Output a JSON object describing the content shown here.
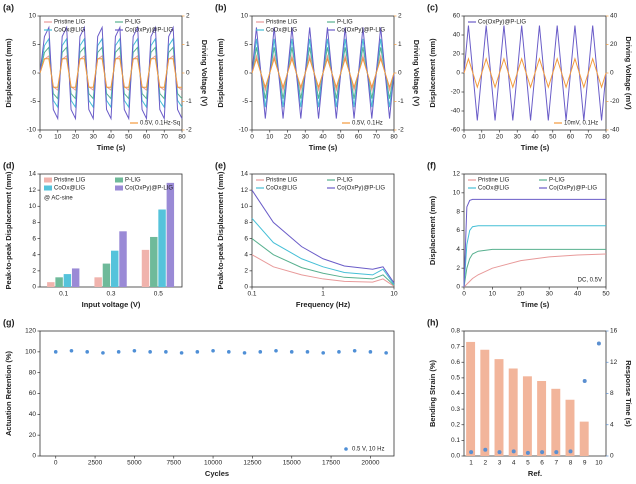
{
  "chart_data": [
    {
      "type": "line",
      "label": "(a)",
      "xlabel": "Time (s)",
      "ylabel": "Displacement (mm)",
      "y2label": "Driving Voltage (V)",
      "xlim": [
        0,
        80
      ],
      "xticks": [
        0,
        10,
        20,
        30,
        40,
        50,
        60,
        70,
        80
      ],
      "ylim": [
        -10,
        10
      ],
      "yticks": [
        -10,
        -5,
        0,
        5,
        10
      ],
      "y2lim": [
        -2,
        2
      ],
      "y2ticks": [
        -2,
        -1,
        0,
        1,
        2
      ],
      "x": [
        0,
        2.5,
        5,
        7.5,
        10,
        12.5,
        15,
        17.5,
        20,
        22.5,
        25,
        27.5,
        30,
        32.5,
        35,
        37.5,
        40,
        42.5,
        45,
        47.5,
        50,
        52.5,
        55,
        57.5,
        60,
        62.5,
        65,
        67.5,
        70,
        72.5,
        75,
        77.5,
        80
      ],
      "series": [
        {
          "name": "Pristine LIG",
          "color": "#e89a9a",
          "values": [
            0,
            2.4,
            3,
            -2.4,
            -3,
            2.4,
            3,
            -2.4,
            -3,
            2.4,
            3,
            -2.4,
            -3,
            2.4,
            3,
            -2.4,
            -3,
            2.4,
            3,
            -2.4,
            -3,
            2.4,
            3,
            -2.4,
            -3,
            2.4,
            3,
            -2.4,
            -3,
            2.4,
            3,
            -2.4,
            -3
          ]
        },
        {
          "name": "P-LIG",
          "color": "#58b08f",
          "values": [
            0,
            3.6,
            4.5,
            -3.6,
            -4.5,
            3.6,
            4.5,
            -3.6,
            -4.5,
            3.6,
            4.5,
            -3.6,
            -4.5,
            3.6,
            4.5,
            -3.6,
            -4.5,
            3.6,
            4.5,
            -3.6,
            -4.5,
            3.6,
            4.5,
            -3.6,
            -4.5,
            3.6,
            4.5,
            -3.6,
            -4.5,
            3.6,
            4.5,
            -3.6,
            -4.5
          ]
        },
        {
          "name": "CoOx@LIG",
          "color": "#45bfd6",
          "values": [
            0,
            4.8,
            6,
            -4.8,
            -6,
            4.8,
            6,
            -4.8,
            -6,
            4.8,
            6,
            -4.8,
            -6,
            4.8,
            6,
            -4.8,
            -6,
            4.8,
            6,
            -4.8,
            -6,
            4.8,
            6,
            -4.8,
            -6,
            4.8,
            6,
            -4.8,
            -6,
            4.8,
            6,
            -4.8,
            -6
          ]
        },
        {
          "name": "Co(OxPy)@P-LIG",
          "color": "#6a5cc8",
          "values": [
            0,
            6.4,
            8,
            -6.4,
            -8,
            6.4,
            8,
            -6.4,
            -8,
            6.4,
            8,
            -6.4,
            -8,
            6.4,
            8,
            -6.4,
            -8,
            6.4,
            8,
            -6.4,
            -8,
            6.4,
            8,
            -6.4,
            -8,
            6.4,
            8,
            -6.4,
            -8,
            6.4,
            8,
            -6.4,
            -8
          ]
        },
        {
          "name": "0.5V, 0.1Hz-Sq",
          "color": "#f29a3c",
          "axis": "y2",
          "values": [
            0,
            0.5,
            0.5,
            -0.5,
            -0.5,
            0.5,
            0.5,
            -0.5,
            -0.5,
            0.5,
            0.5,
            -0.5,
            -0.5,
            0.5,
            0.5,
            -0.5,
            -0.5,
            0.5,
            0.5,
            -0.5,
            -0.5,
            0.5,
            0.5,
            -0.5,
            -0.5,
            0.5,
            0.5,
            -0.5,
            -0.5,
            0.5,
            0.5,
            -0.5,
            -0.5
          ]
        }
      ]
    },
    {
      "type": "line",
      "label": "(b)",
      "xlabel": "Time (s)",
      "ylabel": "Displacement (mm)",
      "y2label": "Driving Voltage (V)",
      "xlim": [
        0,
        80
      ],
      "xticks": [
        0,
        10,
        20,
        30,
        40,
        50,
        60,
        70,
        80
      ],
      "ylim": [
        -10,
        10
      ],
      "yticks": [
        -10,
        -5,
        0,
        5,
        10
      ],
      "y2lim": [
        -2,
        2
      ],
      "y2ticks": [
        -2,
        -1,
        0,
        1,
        2
      ],
      "x": [
        0,
        2.5,
        5,
        7.5,
        10,
        12.5,
        15,
        17.5,
        20,
        22.5,
        25,
        27.5,
        30,
        32.5,
        35,
        37.5,
        40,
        42.5,
        45,
        47.5,
        50,
        52.5,
        55,
        57.5,
        60,
        62.5,
        65,
        67.5,
        70,
        72.5,
        75,
        77.5,
        80
      ],
      "series": [
        {
          "name": "Pristine LIG",
          "color": "#e89a9a",
          "values": [
            0,
            3,
            0,
            -3,
            0,
            3,
            0,
            -3,
            0,
            3,
            0,
            -3,
            0,
            3,
            0,
            -3,
            0,
            3,
            0,
            -3,
            0,
            3,
            0,
            -3,
            0,
            3,
            0,
            -3,
            0,
            3,
            0,
            -3,
            0
          ]
        },
        {
          "name": "P-LIG",
          "color": "#58b08f",
          "values": [
            0,
            4.5,
            0,
            -4.5,
            0,
            4.5,
            0,
            -4.5,
            0,
            4.5,
            0,
            -4.5,
            0,
            4.5,
            0,
            -4.5,
            0,
            4.5,
            0,
            -4.5,
            0,
            4.5,
            0,
            -4.5,
            0,
            4.5,
            0,
            -4.5,
            0,
            4.5,
            0,
            -4.5,
            0
          ]
        },
        {
          "name": "CoOx@LIG",
          "color": "#45bfd6",
          "values": [
            0,
            6,
            0,
            -6,
            0,
            6,
            0,
            -6,
            0,
            6,
            0,
            -6,
            0,
            6,
            0,
            -6,
            0,
            6,
            0,
            -6,
            0,
            6,
            0,
            -6,
            0,
            6,
            0,
            -6,
            0,
            6,
            0,
            -6,
            0
          ]
        },
        {
          "name": "Co(OxPy)@P-LIG",
          "color": "#6a5cc8",
          "values": [
            0,
            8,
            0,
            -8,
            0,
            8,
            0,
            -8,
            0,
            8,
            0,
            -8,
            0,
            8,
            0,
            -8,
            0,
            8,
            0,
            -8,
            0,
            8,
            0,
            -8,
            0,
            8,
            0,
            -8,
            0,
            8,
            0,
            -8,
            0
          ]
        },
        {
          "name": "0.5V, 0.1Hz",
          "color": "#f29a3c",
          "axis": "y2",
          "values": [
            0,
            0.5,
            0,
            -0.5,
            0,
            0.5,
            0,
            -0.5,
            0,
            0.5,
            0,
            -0.5,
            0,
            0.5,
            0,
            -0.5,
            0,
            0.5,
            0,
            -0.5,
            0,
            0.5,
            0,
            -0.5,
            0,
            0.5,
            0,
            -0.5,
            0,
            0.5,
            0,
            -0.5,
            0
          ]
        }
      ]
    },
    {
      "type": "line",
      "label": "(c)",
      "xlabel": "Time (s)",
      "ylabel": "Displacement (mm)",
      "y2label": "Driving Voltage (mV)",
      "xlim": [
        0,
        80
      ],
      "xticks": [
        0,
        10,
        20,
        30,
        40,
        50,
        60,
        70,
        80
      ],
      "ylim": [
        -60,
        60
      ],
      "yticks": [
        -60,
        -40,
        -20,
        0,
        20,
        40,
        60
      ],
      "y2lim": [
        -40,
        40
      ],
      "y2ticks": [
        -40,
        -20,
        0,
        20,
        40
      ],
      "x": [
        0,
        2.5,
        5,
        7.5,
        10,
        12.5,
        15,
        17.5,
        20,
        22.5,
        25,
        27.5,
        30,
        32.5,
        35,
        37.5,
        40,
        42.5,
        45,
        47.5,
        50,
        52.5,
        55,
        57.5,
        60,
        62.5,
        65,
        67.5,
        70,
        72.5,
        75,
        77.5,
        80
      ],
      "series": [
        {
          "name": "Co(OxPy)@P-LIG",
          "color": "#6a5cc8",
          "values": [
            0,
            50,
            0,
            -50,
            0,
            50,
            0,
            -50,
            0,
            50,
            0,
            -50,
            0,
            50,
            0,
            -50,
            0,
            50,
            0,
            -50,
            0,
            50,
            0,
            -50,
            0,
            50,
            0,
            -50,
            0,
            50,
            0,
            -50,
            0
          ]
        },
        {
          "name": "10mV, 0.1Hz",
          "color": "#f29a3c",
          "axis": "y2",
          "values": [
            0,
            10,
            0,
            -10,
            0,
            10,
            0,
            -10,
            0,
            10,
            0,
            -10,
            0,
            10,
            0,
            -10,
            0,
            10,
            0,
            -10,
            0,
            10,
            0,
            -10,
            0,
            10,
            0,
            -10,
            0,
            10,
            0,
            -10,
            0
          ]
        }
      ]
    },
    {
      "type": "bar",
      "label": "(d)",
      "xlabel": "Input voltage (V)",
      "ylabel": "Peak-to-peak Displacement (mm)",
      "annotation": "@ AC-sine",
      "categories": [
        "0.1",
        "0.3",
        "0.5"
      ],
      "ylim": [
        0,
        14
      ],
      "yticks": [
        0,
        2,
        4,
        6,
        8,
        10,
        12,
        14
      ],
      "series": [
        {
          "name": "Pristine LIG",
          "color": "#f0b3ad",
          "values": [
            0.6,
            1.2,
            4.6
          ]
        },
        {
          "name": "P-LIG",
          "color": "#6fba9a",
          "values": [
            1.2,
            2.9,
            6.2
          ]
        },
        {
          "name": "CoOx@LIG",
          "color": "#55c3db",
          "values": [
            1.6,
            4.5,
            9.6
          ]
        },
        {
          "name": "Co(OxPy)@P-LIG",
          "color": "#9a8ad6",
          "values": [
            2.3,
            6.9,
            12.9
          ]
        }
      ]
    },
    {
      "type": "line",
      "label": "(e)",
      "xlabel": "Frequency (Hz)",
      "ylabel": "Peak-to-peak Displacement (mm)",
      "xlog": true,
      "xlim": [
        0.1,
        10
      ],
      "xticks": [
        0.1,
        1,
        10
      ],
      "ylim": [
        0,
        14
      ],
      "yticks": [
        0,
        2,
        4,
        6,
        8,
        10,
        12,
        14
      ],
      "x": [
        0.1,
        0.2,
        0.5,
        1,
        2,
        5,
        7,
        10
      ],
      "series": [
        {
          "name": "Pristine LIG",
          "color": "#e89a9a",
          "values": [
            4,
            2.5,
            1.5,
            1,
            0.7,
            0.6,
            1,
            0.1
          ]
        },
        {
          "name": "P-LIG",
          "color": "#58b08f",
          "values": [
            6,
            4,
            2.4,
            1.7,
            1.2,
            1,
            1.5,
            0.2
          ]
        },
        {
          "name": "CoOx@LIG",
          "color": "#45bfd6",
          "values": [
            8.5,
            5.5,
            3.5,
            2.5,
            1.8,
            1.5,
            2.2,
            0.3
          ]
        },
        {
          "name": "Co(OxPy)@P-LIG",
          "color": "#6a5cc8",
          "values": [
            12,
            8,
            5,
            3.5,
            2.6,
            2.2,
            2.5,
            0.5
          ]
        }
      ]
    },
    {
      "type": "line",
      "label": "(f)",
      "xlabel": "Time (s)",
      "ylabel": "Displacement (mm)",
      "annotation": "DC, 0.5V",
      "xlim": [
        0,
        50
      ],
      "xticks": [
        0,
        10,
        20,
        30,
        40,
        50
      ],
      "ylim": [
        0,
        12
      ],
      "yticks": [
        0,
        2,
        4,
        6,
        8,
        10,
        12
      ],
      "x": [
        0,
        1,
        2,
        3,
        5,
        10,
        20,
        30,
        40,
        50
      ],
      "series": [
        {
          "name": "Pristine LIG",
          "color": "#e89a9a",
          "values": [
            0,
            0.3,
            0.6,
            0.9,
            1.3,
            2,
            2.8,
            3.2,
            3.4,
            3.5
          ]
        },
        {
          "name": "P-LIG",
          "color": "#58b08f",
          "values": [
            0,
            2,
            3,
            3.5,
            3.8,
            4,
            4,
            4,
            4,
            4
          ]
        },
        {
          "name": "CoOx@LIG",
          "color": "#45bfd6",
          "values": [
            0,
            4.5,
            6,
            6.4,
            6.5,
            6.5,
            6.5,
            6.5,
            6.5,
            6.5
          ]
        },
        {
          "name": "Co(OxPy)@P-LIG",
          "color": "#6a5cc8",
          "values": [
            0,
            8.5,
            9.2,
            9.3,
            9.3,
            9.3,
            9.3,
            9.3,
            9.3,
            9.3
          ]
        }
      ]
    },
    {
      "type": "scatter",
      "label": "(g)",
      "xlabel": "Cycles",
      "ylabel": "Actuation Retention (%)",
      "xlim": [
        -1000,
        21500
      ],
      "xticks": [
        0,
        2500,
        5000,
        7500,
        10000,
        12500,
        15000,
        17500,
        20000
      ],
      "ylim": [
        0,
        120
      ],
      "yticks": [
        0,
        20,
        40,
        60,
        80,
        100,
        120
      ],
      "x": [
        0,
        1000,
        2000,
        3000,
        4000,
        5000,
        6000,
        7000,
        8000,
        9000,
        10000,
        11000,
        12000,
        13000,
        14000,
        15000,
        16000,
        17000,
        18000,
        19000,
        20000,
        21000
      ],
      "series": [
        {
          "name": "0.5 V, 10 Hz",
          "color": "#4f8fd6",
          "axis": "y2",
          "values": [
            100,
            101,
            100,
            99,
            100,
            101,
            100,
            100,
            99,
            100,
            101,
            100,
            99,
            100,
            101,
            100,
            100,
            99,
            100,
            101,
            100,
            99
          ]
        }
      ],
      "y2lim": [
        0,
        120
      ]
    },
    {
      "type": "bar",
      "label": "(h)",
      "xlabel": "Ref.",
      "ylabel": "Bending Strain (%)",
      "y2label": "Response Time (s)",
      "categories": [
        "1",
        "2",
        "3",
        "4",
        "5",
        "6",
        "7",
        "8",
        "9",
        "10"
      ],
      "ylim": [
        0,
        0.8
      ],
      "yticks": [
        {
          "value": 0,
          "label": "0.0"
        },
        0.1,
        0.2,
        0.3,
        0.4,
        0.5,
        0.6,
        0.7,
        0.8
      ],
      "y2lim": [
        0,
        16
      ],
      "y2ticks": [
        0,
        4,
        8,
        12,
        16
      ],
      "series": [
        {
          "color": "#f2b59b",
          "values": [
            0.73,
            0.68,
            0.62,
            0.56,
            0.51,
            0.48,
            0.43,
            0.36,
            0.22,
            null
          ]
        },
        {
          "color": "#5b8fd0",
          "axis": "y2",
          "values": [
            0.5,
            0.8,
            0.5,
            0.6,
            0.4,
            0.5,
            0.5,
            0.6,
            9.6,
            14.4
          ]
        }
      ]
    }
  ]
}
